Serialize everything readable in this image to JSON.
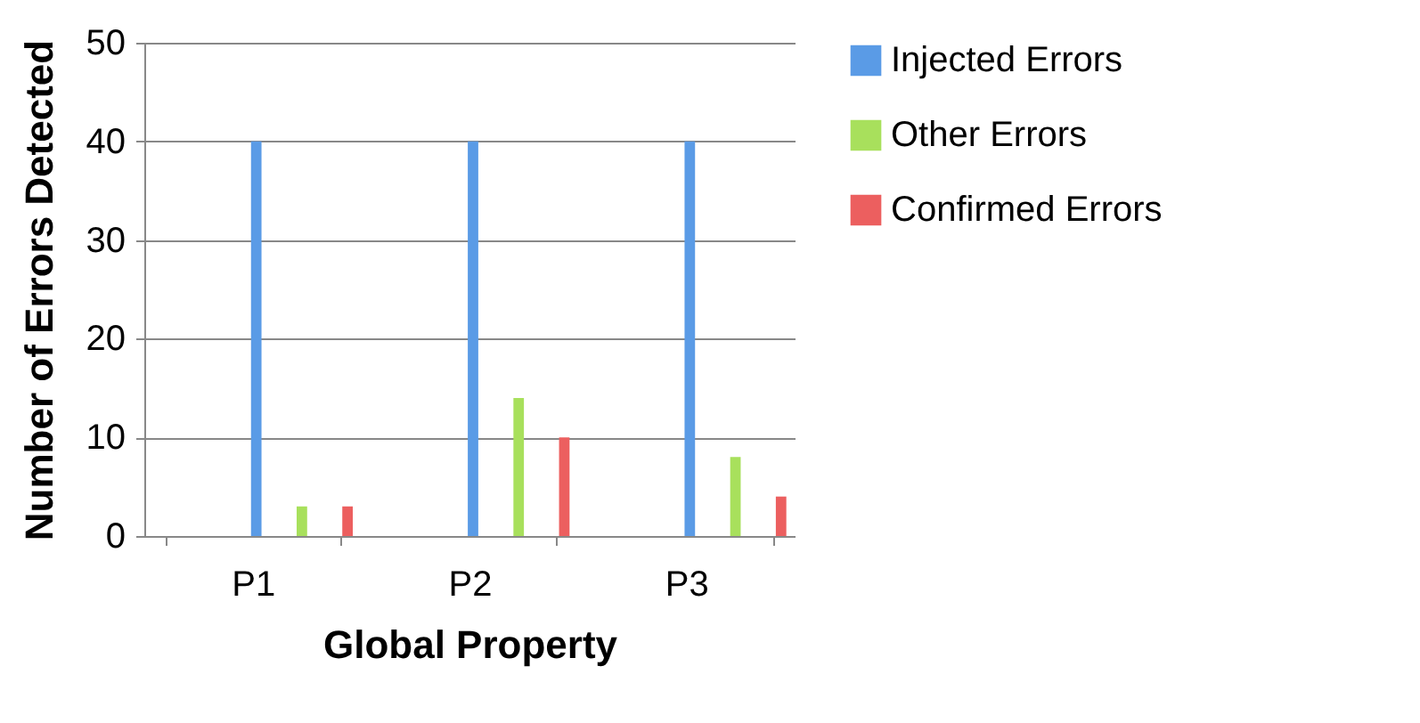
{
  "chart_data": {
    "type": "bar",
    "xlabel": "Global Property",
    "ylabel": "Number of Errors Detected",
    "categories": [
      "P1",
      "P2",
      "P3"
    ],
    "series": [
      {
        "name": "Injected Errors",
        "color": "#5a9be6",
        "values": [
          40,
          40,
          40
        ]
      },
      {
        "name": "Other Errors",
        "color": "#a8e05c",
        "values": [
          3,
          14,
          8
        ]
      },
      {
        "name": "Confirmed Errors",
        "color": "#ec5f5f",
        "values": [
          3,
          10,
          4
        ]
      }
    ],
    "ylim": [
      0,
      50
    ],
    "yticks": [
      0,
      10,
      20,
      30,
      40,
      50
    ],
    "grid": "y",
    "legend": "right"
  }
}
